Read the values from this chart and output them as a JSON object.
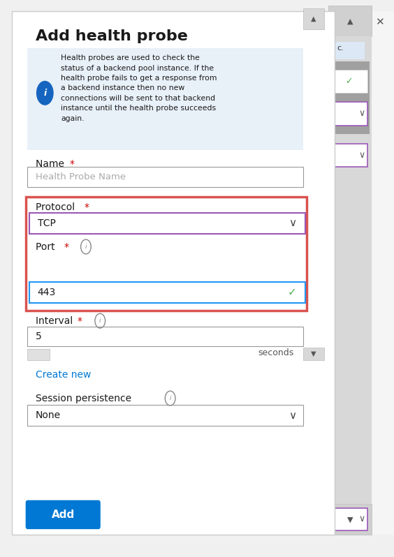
{
  "bg_color": "#f0f0f0",
  "panel_color": "#ffffff",
  "title": "Add health probe",
  "title_fontsize": 16,
  "info_box_color": "#e8f0f8",
  "info_text": "Health probes are used to check the\nstatus of a backend pool instance. If the\nhealth probe fails to get a response from\na backend instance then no new\nconnections will be sent to that backend\ninstance until the health probe succeeds\nagain.",
  "name_placeholder": "Health Probe Name",
  "protocol_value": "TCP",
  "port_value": "443",
  "interval_value": "5",
  "seconds_text": "seconds",
  "create_new_text": "Create new",
  "session_value": "None",
  "add_button_text": "Add",
  "highlight_border_color": "#d9534f",
  "protocol_border_color": "#9b59b6",
  "port_border_color": "#2196F3",
  "checkmark_color": "#4caf50",
  "add_button_color": "#0078d4",
  "label_red_star": "#cc0000",
  "text_dark": "#1a1a1a",
  "text_gray": "#888888",
  "link_color": "#0078d4"
}
